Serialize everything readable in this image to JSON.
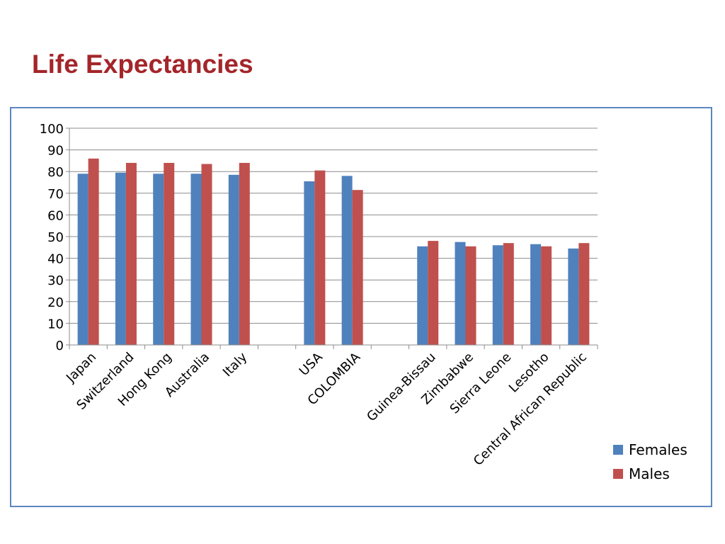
{
  "page": {
    "title": "Life Expectancies"
  },
  "colors": {
    "females": "#4f81bd",
    "males": "#c0504d",
    "title": "#a3262a",
    "frame": "#5b86c0"
  },
  "legend": {
    "items": [
      {
        "label": "Females",
        "color": "#4f81bd"
      },
      {
        "label": "Males",
        "color": "#c0504d"
      }
    ]
  },
  "chart_data": {
    "type": "bar",
    "title": "",
    "xlabel": "",
    "ylabel": "",
    "ylim": [
      0,
      100
    ],
    "yticks": [
      "0",
      "10",
      "20",
      "30",
      "40",
      "50",
      "60",
      "70",
      "80",
      "90",
      "100"
    ],
    "grid": true,
    "legend_position": "bottom-right",
    "categories": [
      "Japan",
      "Switzerland",
      "Hong Kong",
      "Australia",
      "Italy",
      "",
      "USA",
      "COLOMBIA",
      "",
      "Guinea-Bissau",
      "Zimbabwe",
      "Sierra Leone",
      "Lesotho",
      "Central African Republic"
    ],
    "series": [
      {
        "name": "Females",
        "color": "#4f81bd",
        "values": [
          79,
          79.5,
          79,
          79,
          78.5,
          null,
          75.5,
          78,
          null,
          45.5,
          47.5,
          46,
          46.5,
          44.5
        ]
      },
      {
        "name": "Males",
        "color": "#c0504d",
        "values": [
          86,
          84,
          84,
          83.5,
          84,
          null,
          80.5,
          71.5,
          null,
          48,
          45.5,
          47,
          45.5,
          47
        ]
      }
    ]
  }
}
